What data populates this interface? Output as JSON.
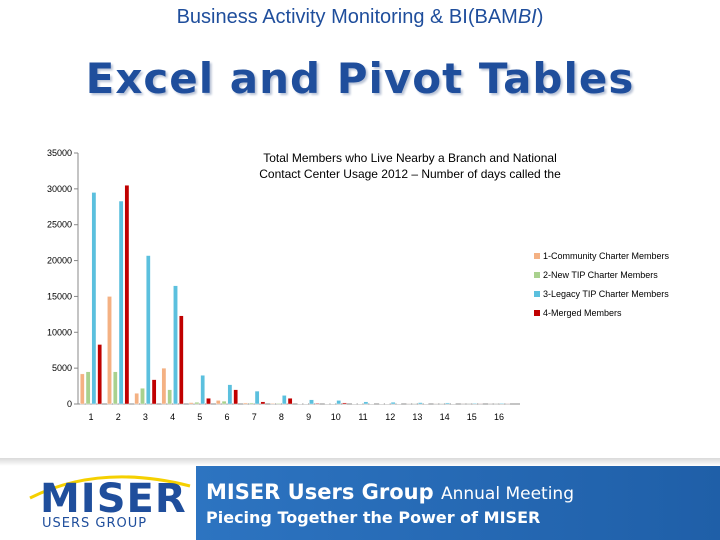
{
  "slide": {
    "title_prefix": "Business Activity Monitoring & BI(BAM",
    "title_italic": "BI",
    "title_suffix": ")",
    "heading": "Excel and Pivot Tables"
  },
  "chart_data": {
    "type": "bar",
    "title_line1": "Total Members who Live Nearby a Branch and National",
    "title_line2": "Contact Center Usage 2012 – Number of days called the",
    "xlabel": "",
    "ylabel": "",
    "ylim": [
      0,
      35000
    ],
    "yticks": [
      0,
      5000,
      10000,
      15000,
      20000,
      25000,
      30000,
      35000
    ],
    "categories": [
      "1",
      "2",
      "3",
      "4",
      "5",
      "6",
      "7",
      "8",
      "9",
      "10",
      "11",
      "12",
      "13",
      "14",
      "15",
      "16"
    ],
    "grid": false,
    "legend_position": "right",
    "series": [
      {
        "name": "1-Community Charter Members",
        "color": "#f4b183",
        "values": [
          4200,
          15000,
          1500,
          5000,
          200,
          500,
          150,
          100,
          50,
          50,
          30,
          30,
          20,
          20,
          10,
          10
        ]
      },
      {
        "name": "2-New TIP Charter Members",
        "color": "#a9d18e",
        "values": [
          4500,
          4500,
          2200,
          2000,
          250,
          400,
          150,
          100,
          50,
          50,
          30,
          30,
          20,
          20,
          10,
          10
        ]
      },
      {
        "name": "3-Legacy TIP Charter Members",
        "color": "#5bc0de",
        "values": [
          29500,
          28300,
          20700,
          16500,
          4000,
          2700,
          1800,
          1200,
          600,
          500,
          300,
          250,
          200,
          150,
          100,
          100
        ]
      },
      {
        "name": "4-Merged Members",
        "color": "#c00000",
        "values": [
          8300,
          30500,
          3400,
          12300,
          800,
          2000,
          300,
          800,
          100,
          150,
          50,
          50,
          30,
          30,
          20,
          20
        ]
      }
    ]
  },
  "footer": {
    "logo_text": "MISER",
    "logo_subtext": "USERS GROUP",
    "banner_bold": "MISER Users Group",
    "banner_light": "Annual Meeting",
    "banner_line2": "Piecing Together the Power of MISER"
  }
}
